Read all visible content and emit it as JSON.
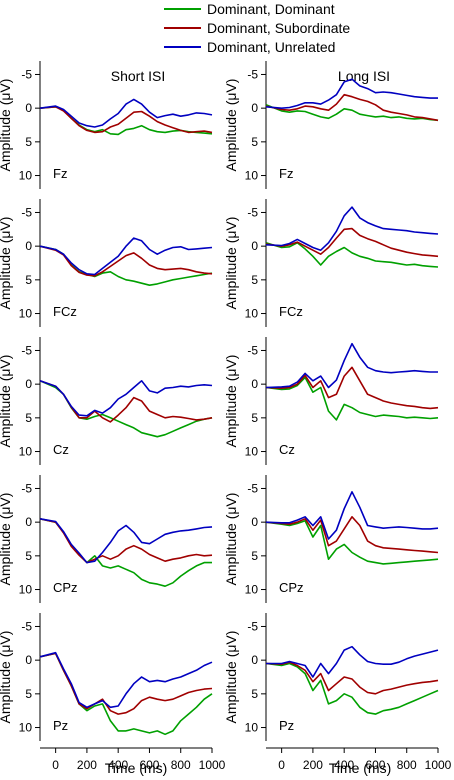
{
  "legend": {
    "items": [
      {
        "label": "Dominant, Dominant",
        "color": "#00a000"
      },
      {
        "label": "Dominant, Subordinate",
        "color": "#a00000"
      },
      {
        "label": "Dominant, Unrelated",
        "color": "#0000c0"
      }
    ]
  },
  "column_titles": [
    "Short ISI",
    "Long ISI"
  ],
  "row_labels": [
    "Fz",
    "FCz",
    "Cz",
    "CPz",
    "Pz"
  ],
  "ylabel": "Amplitude (μV)",
  "xlabel": "Time (ms)",
  "y_ticks": [
    "-5",
    "0",
    "5",
    "10"
  ],
  "x_ticks": [
    "0",
    "200",
    "400",
    "600",
    "800",
    "1000"
  ],
  "chart_data": {
    "type": "line",
    "xlim": [
      -100,
      1000
    ],
    "ylim": [
      -7,
      12
    ],
    "y_inverted": true,
    "x": [
      -100,
      0,
      50,
      100,
      150,
      200,
      250,
      300,
      350,
      400,
      450,
      500,
      550,
      600,
      650,
      700,
      750,
      800,
      850,
      900,
      950,
      1000
    ],
    "series_names": [
      "Dominant, Dominant",
      "Dominant, Subordinate",
      "Dominant, Unrelated"
    ],
    "panels": [
      {
        "column": "Short ISI",
        "electrode": "Fz",
        "series": [
          {
            "name": "Dominant, Dominant",
            "values": [
              0,
              -0.2,
              0.3,
              1.5,
              2.5,
              3.2,
              3.5,
              3.2,
              3.8,
              3.9,
              3.2,
              3.0,
              2.6,
              3.2,
              3.5,
              3.6,
              3.4,
              3.3,
              3.5,
              3.6,
              3.7,
              3.8
            ]
          },
          {
            "name": "Dominant, Subordinate",
            "values": [
              0,
              -0.2,
              0.4,
              1.5,
              2.6,
              3.3,
              3.6,
              3.5,
              2.8,
              2.4,
              1.5,
              0.6,
              0.5,
              1.2,
              2.0,
              2.5,
              2.9,
              3.3,
              3.6,
              3.5,
              3.4,
              3.6
            ]
          },
          {
            "name": "Dominant, Unrelated",
            "values": [
              0,
              -0.3,
              0.2,
              1.2,
              2.2,
              2.6,
              2.8,
              2.5,
              1.6,
              0.8,
              -0.6,
              -1.3,
              -0.6,
              0.6,
              1.4,
              1.1,
              0.9,
              1.2,
              1.0,
              0.7,
              0.8,
              1.0
            ]
          }
        ]
      },
      {
        "column": "Long ISI",
        "electrode": "Fz",
        "series": [
          {
            "name": "Dominant, Dominant",
            "values": [
              -0.5,
              0.4,
              0.6,
              0.4,
              0.5,
              0.9,
              1.3,
              1.5,
              0.9,
              0.1,
              0.3,
              0.9,
              1.1,
              1.3,
              1.2,
              1.4,
              1.3,
              1.5,
              1.6,
              1.5,
              1.7,
              1.8
            ]
          },
          {
            "name": "Dominant, Subordinate",
            "values": [
              -0.3,
              0.2,
              0.3,
              0.1,
              -0.3,
              -0.2,
              0.1,
              0.3,
              -0.6,
              -2.0,
              -1.7,
              -1.3,
              -1.0,
              -0.5,
              0.3,
              0.6,
              0.8,
              1.0,
              1.3,
              1.4,
              1.6,
              1.8
            ]
          },
          {
            "name": "Dominant, Unrelated",
            "values": [
              -0.2,
              0.0,
              -0.1,
              -0.4,
              -0.8,
              -0.8,
              -0.6,
              -1.2,
              -2.0,
              -3.9,
              -4.3,
              -3.3,
              -2.9,
              -2.3,
              -2.4,
              -2.3,
              -2.1,
              -1.9,
              -1.7,
              -1.6,
              -1.5,
              -1.5
            ]
          }
        ]
      },
      {
        "column": "Short ISI",
        "electrode": "FCz",
        "series": [
          {
            "name": "Dominant, Dominant",
            "values": [
              0,
              0.5,
              1.2,
              2.8,
              3.8,
              4.2,
              4.5,
              4.0,
              3.8,
              4.5,
              5.0,
              5.2,
              5.5,
              5.8,
              5.6,
              5.3,
              5.0,
              4.8,
              4.6,
              4.4,
              4.2,
              4.0
            ]
          },
          {
            "name": "Dominant, Subordinate",
            "values": [
              0,
              0.6,
              1.3,
              2.9,
              3.9,
              4.3,
              4.4,
              3.8,
              3.0,
              2.2,
              1.4,
              1.0,
              1.8,
              2.8,
              3.3,
              3.5,
              3.4,
              3.3,
              3.5,
              3.8,
              4.0,
              4.1
            ]
          },
          {
            "name": "Dominant, Unrelated",
            "values": [
              0,
              0.5,
              1.2,
              2.5,
              3.5,
              4.1,
              4.2,
              3.3,
              2.4,
              1.5,
              0.0,
              -1.2,
              -0.8,
              0.5,
              1.2,
              0.6,
              0.2,
              0.1,
              0.5,
              0.4,
              0.3,
              0.2
            ]
          }
        ]
      },
      {
        "column": "Long ISI",
        "electrode": "FCz",
        "series": [
          {
            "name": "Dominant, Dominant",
            "values": [
              -0.5,
              0.2,
              0.1,
              -0.5,
              0.4,
              1.5,
              2.8,
              1.5,
              0.8,
              0.2,
              1.0,
              1.5,
              1.8,
              2.2,
              2.3,
              2.4,
              2.6,
              2.8,
              2.7,
              2.9,
              3.0,
              3.1
            ]
          },
          {
            "name": "Dominant, Subordinate",
            "values": [
              -0.3,
              0.0,
              -0.2,
              -0.6,
              0.0,
              0.6,
              1.2,
              0.2,
              -1.2,
              -2.5,
              -2.6,
              -1.6,
              -1.1,
              -0.7,
              -0.2,
              0.3,
              0.6,
              0.9,
              1.1,
              1.3,
              1.4,
              1.5
            ]
          },
          {
            "name": "Dominant, Unrelated",
            "values": [
              -0.2,
              -0.1,
              -0.4,
              -1.0,
              -0.4,
              0.2,
              0.6,
              -0.5,
              -2.2,
              -4.5,
              -5.8,
              -4.2,
              -3.5,
              -3.0,
              -2.6,
              -2.5,
              -2.4,
              -2.3,
              -2.1,
              -2.0,
              -1.9,
              -1.8
            ]
          }
        ]
      },
      {
        "column": "Short ISI",
        "electrode": "Cz",
        "series": [
          {
            "name": "Dominant, Dominant",
            "values": [
              -0.5,
              0.5,
              1.5,
              3.5,
              5.0,
              5.2,
              4.8,
              4.5,
              5.0,
              5.5,
              6.0,
              6.5,
              7.2,
              7.5,
              7.8,
              7.5,
              7.0,
              6.5,
              6.0,
              5.5,
              5.2,
              5.0
            ]
          },
          {
            "name": "Dominant, Subordinate",
            "values": [
              -0.5,
              0.3,
              1.5,
              3.4,
              5.0,
              5.0,
              4.0,
              5.0,
              5.6,
              4.6,
              3.5,
              2.0,
              2.5,
              4.0,
              4.5,
              5.0,
              4.8,
              4.9,
              5.1,
              5.3,
              5.2,
              5.0
            ]
          },
          {
            "name": "Dominant, Unrelated",
            "values": [
              -0.5,
              0.3,
              1.5,
              3.3,
              4.6,
              4.7,
              3.9,
              4.3,
              3.5,
              2.2,
              1.5,
              0.5,
              -0.5,
              1.0,
              1.3,
              0.6,
              0.5,
              0.3,
              0.4,
              0.2,
              0.1,
              0.2
            ]
          }
        ]
      },
      {
        "column": "Long ISI",
        "electrode": "Cz",
        "series": [
          {
            "name": "Dominant, Dominant",
            "values": [
              0.5,
              0.8,
              0.7,
              0.2,
              -1.0,
              1.2,
              0.5,
              4.0,
              5.3,
              3.0,
              3.5,
              4.2,
              4.5,
              4.8,
              4.6,
              4.7,
              4.8,
              5.0,
              4.9,
              5.0,
              5.1,
              5.0
            ]
          },
          {
            "name": "Dominant, Subordinate",
            "values": [
              0.5,
              0.6,
              0.5,
              0.0,
              -1.3,
              0.5,
              -0.5,
              2.0,
              1.5,
              -1.2,
              -2.5,
              -0.5,
              1.5,
              2.0,
              2.5,
              2.8,
              3.0,
              3.2,
              3.3,
              3.5,
              3.6,
              3.5
            ]
          },
          {
            "name": "Dominant, Unrelated",
            "values": [
              0.5,
              0.4,
              0.3,
              -0.3,
              -1.6,
              -0.5,
              -1.2,
              0.5,
              -0.6,
              -3.5,
              -6.0,
              -4.0,
              -2.5,
              -2.0,
              -1.8,
              -1.7,
              -1.8,
              -1.9,
              -2.0,
              -1.9,
              -1.8,
              -1.8
            ]
          }
        ]
      },
      {
        "column": "Short ISI",
        "electrode": "CPz",
        "series": [
          {
            "name": "Dominant, Dominant",
            "values": [
              -0.5,
              0.0,
              1.5,
              3.5,
              4.8,
              6.0,
              5.0,
              6.5,
              6.8,
              6.5,
              7.0,
              7.5,
              8.5,
              9.0,
              9.2,
              9.5,
              9.0,
              8.0,
              7.2,
              6.5,
              6.0,
              6.0
            ]
          },
          {
            "name": "Dominant, Subordinate",
            "values": [
              -0.5,
              0.0,
              1.6,
              3.6,
              4.9,
              6.0,
              5.5,
              5.0,
              5.5,
              5.0,
              4.0,
              3.5,
              4.0,
              4.8,
              5.3,
              5.8,
              5.5,
              5.3,
              5.0,
              4.8,
              5.0,
              4.9
            ]
          },
          {
            "name": "Dominant, Unrelated",
            "values": [
              -0.5,
              -0.1,
              1.4,
              3.3,
              4.6,
              6.0,
              5.8,
              4.5,
              3.0,
              1.3,
              0.5,
              1.5,
              3.0,
              3.2,
              2.5,
              1.8,
              1.5,
              1.3,
              1.2,
              1.0,
              0.8,
              0.7
            ]
          }
        ]
      },
      {
        "column": "Long ISI",
        "electrode": "CPz",
        "series": [
          {
            "name": "Dominant, Dominant",
            "values": [
              0.0,
              0.3,
              0.5,
              0.2,
              -0.2,
              2.2,
              0.5,
              5.5,
              4.0,
              3.3,
              4.5,
              5.2,
              5.8,
              6.0,
              6.2,
              6.1,
              6.0,
              5.9,
              5.8,
              5.7,
              5.6,
              5.5
            ]
          },
          {
            "name": "Dominant, Subordinate",
            "values": [
              0.0,
              0.2,
              0.3,
              0.0,
              -0.5,
              1.2,
              -0.3,
              3.5,
              2.8,
              1.0,
              -0.8,
              0.5,
              2.8,
              3.5,
              3.8,
              3.9,
              4.0,
              4.1,
              4.2,
              4.3,
              4.4,
              4.5
            ]
          },
          {
            "name": "Dominant, Unrelated",
            "values": [
              0.0,
              0.1,
              0.1,
              -0.3,
              -0.8,
              0.5,
              -0.8,
              2.5,
              1.2,
              -2.0,
              -4.5,
              -2.2,
              0.5,
              0.7,
              0.9,
              0.8,
              0.7,
              0.8,
              0.9,
              1.0,
              1.0,
              0.9
            ]
          }
        ]
      },
      {
        "column": "Short ISI",
        "electrode": "Pz",
        "series": [
          {
            "name": "Dominant, Dominant",
            "values": [
              -0.5,
              -1.0,
              1.5,
              3.8,
              6.5,
              7.5,
              6.8,
              6.5,
              9.0,
              10.5,
              10.5,
              10.2,
              10.5,
              10.8,
              10.5,
              11.0,
              10.5,
              9.0,
              8.0,
              7.0,
              5.8,
              5.0
            ]
          },
          {
            "name": "Dominant, Subordinate",
            "values": [
              -0.5,
              -1.0,
              1.5,
              3.8,
              6.5,
              7.2,
              6.5,
              5.8,
              7.5,
              8.0,
              7.8,
              7.2,
              6.0,
              5.5,
              5.8,
              6.0,
              5.8,
              5.3,
              4.8,
              4.5,
              4.3,
              4.2
            ]
          },
          {
            "name": "Dominant, Unrelated",
            "values": [
              -0.5,
              -1.1,
              1.3,
              3.5,
              6.3,
              7.0,
              6.5,
              6.0,
              7.0,
              6.8,
              5.0,
              3.5,
              2.5,
              3.2,
              3.0,
              3.2,
              2.8,
              2.5,
              2.0,
              1.5,
              0.8,
              0.3
            ]
          }
        ]
      },
      {
        "column": "Long ISI",
        "electrode": "Pz",
        "series": [
          {
            "name": "Dominant, Dominant",
            "values": [
              0.5,
              0.8,
              0.5,
              1.0,
              2.0,
              4.5,
              3.0,
              6.5,
              6.0,
              5.0,
              5.5,
              7.0,
              7.8,
              8.0,
              7.5,
              7.3,
              7.0,
              6.5,
              6.0,
              5.5,
              5.0,
              4.5
            ]
          },
          {
            "name": "Dominant, Subordinate",
            "values": [
              0.5,
              0.6,
              0.3,
              0.8,
              1.5,
              3.2,
              2.0,
              4.5,
              3.5,
              2.5,
              2.8,
              4.0,
              4.8,
              5.0,
              4.5,
              4.3,
              4.0,
              3.7,
              3.5,
              3.3,
              3.2,
              3.0
            ]
          },
          {
            "name": "Dominant, Unrelated",
            "values": [
              0.5,
              0.5,
              0.2,
              0.5,
              0.8,
              2.5,
              0.5,
              2.0,
              0.5,
              -1.5,
              -2.0,
              -0.8,
              0.2,
              0.5,
              0.6,
              0.6,
              0.3,
              -0.2,
              -0.6,
              -0.9,
              -1.2,
              -1.5
            ]
          }
        ]
      }
    ]
  }
}
